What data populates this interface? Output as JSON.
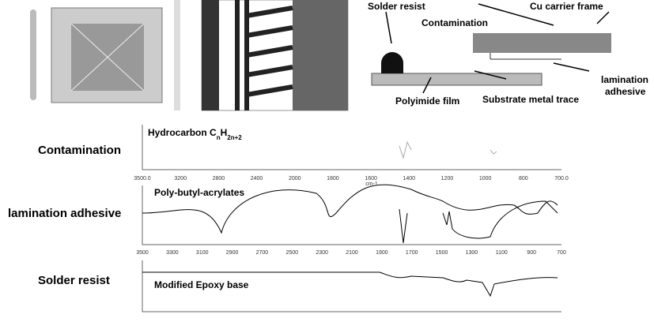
{
  "diagram": {
    "solder_resist": "Solder resist",
    "contamination": "Contamination",
    "cu_frame": "Cu carrier frame",
    "lamination": "lamination",
    "adhesive": "adhesive",
    "polyimide": "Polyimide film",
    "substrate": "Substrate metal trace"
  },
  "spectra": [
    {
      "label": "Contamination",
      "compound": [
        "Hydrocarbon C",
        "n",
        "H",
        "2n+2"
      ],
      "ticks": [
        "3500.0",
        "3200",
        "2800",
        "2400",
        "2000",
        "1800",
        "1600",
        "1400",
        "1200",
        "1000",
        "800",
        "700.0"
      ],
      "unit": "cm-1"
    },
    {
      "label": "lamination adhesive",
      "compound": [
        "Poly-butyl-acrylates"
      ],
      "ticks": [
        "3500",
        "3300",
        "3100",
        "2900",
        "2700",
        "2500",
        "2300",
        "2100",
        "1900",
        "1700",
        "1500",
        "1300",
        "1100",
        "900",
        "700"
      ]
    },
    {
      "label": "Solder resist",
      "compound": [
        "Modified Epoxy base"
      ],
      "ticks": []
    }
  ]
}
